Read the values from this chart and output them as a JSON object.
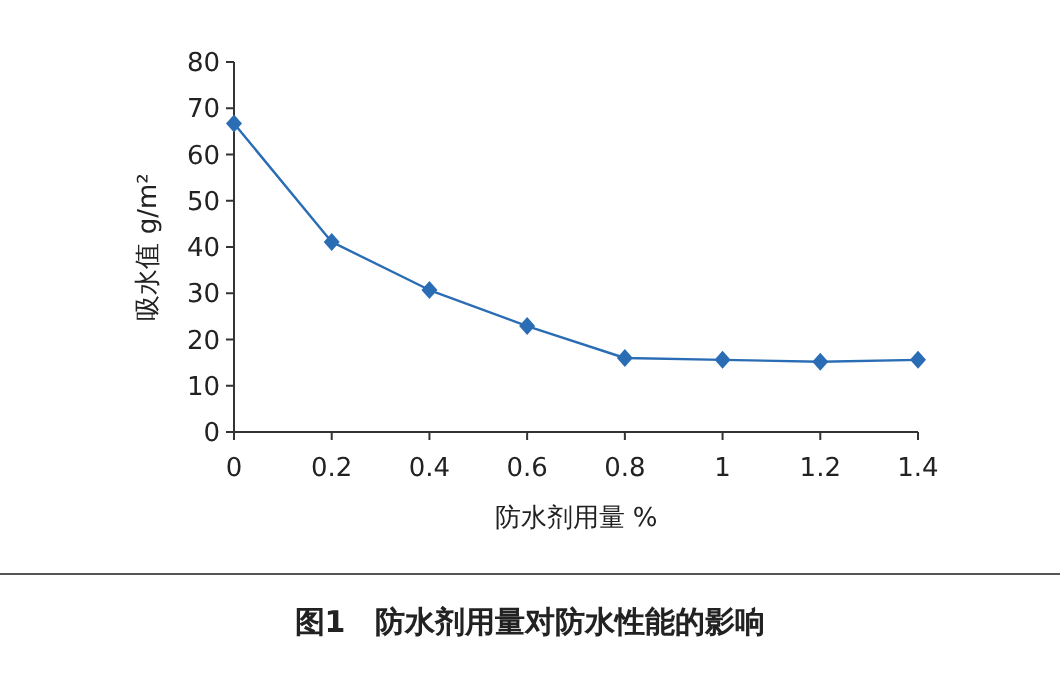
{
  "chart_data": {
    "type": "line",
    "xlabel": "防水剂用量 %",
    "ylabel": "吸水值 g/m²",
    "annotations": [
      "图1　防水剂用量对防水性能的影响"
    ],
    "x": [
      0,
      0.2,
      0.4,
      0.6,
      0.8,
      1.0,
      1.2,
      1.4
    ],
    "series": [
      {
        "color": "#2a6db5",
        "values": [
          66.7,
          41.1,
          30.7,
          22.9,
          16.0,
          15.6,
          15.2,
          15.6
        ]
      }
    ],
    "xlim": [
      0,
      1.4
    ],
    "ylim": [
      0,
      80
    ],
    "xticks": [
      0,
      0.2,
      0.4,
      0.6,
      0.8,
      1,
      1.2,
      1.4
    ],
    "yticks": [
      0,
      10,
      20,
      30,
      40,
      50,
      60,
      70,
      80
    ],
    "marker": "diamond"
  }
}
